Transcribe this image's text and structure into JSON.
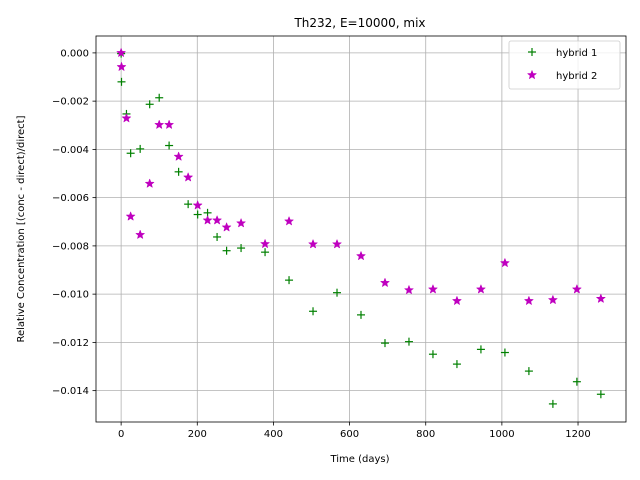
{
  "chart_data": {
    "type": "scatter",
    "title": "Th232, E=10000, mix",
    "xlabel": "Time (days)",
    "ylabel": "Relative Concentration [(conc - direct)/direct]",
    "xlim": [
      -66,
      1326
    ],
    "ylim": [
      -0.0153,
      0.0007
    ],
    "xticks": [
      0,
      200,
      400,
      600,
      800,
      1000,
      1200
    ],
    "xtick_labels": [
      "0",
      "200",
      "400",
      "600",
      "800",
      "1000",
      "1200"
    ],
    "yticks": [
      0.0,
      -0.002,
      -0.004,
      -0.006,
      -0.008,
      -0.01,
      -0.012,
      -0.014
    ],
    "ytick_labels": [
      "0.000",
      "−0.002",
      "−0.004",
      "−0.006",
      "−0.008",
      "−0.010",
      "−0.012",
      "−0.014"
    ],
    "grid": true,
    "legend_position": "top-right",
    "series": [
      {
        "name": "hybrid 1",
        "marker": "plus",
        "color": "#008000",
        "x": [
          0,
          1,
          14,
          25,
          50,
          75,
          100,
          126,
          151,
          176,
          201,
          227,
          252,
          277,
          315,
          378,
          441,
          504,
          567,
          630,
          693,
          756,
          819,
          882,
          945,
          1008,
          1071,
          1134,
          1197,
          1260
        ],
        "y": [
          -3e-05,
          -0.0012,
          -0.00253,
          -0.00416,
          -0.00398,
          -0.00213,
          -0.00186,
          -0.00384,
          -0.00493,
          -0.00627,
          -0.0067,
          -0.00663,
          -0.00763,
          -0.0082,
          -0.00809,
          -0.00826,
          -0.00942,
          -0.01071,
          -0.00994,
          -0.01086,
          -0.01203,
          -0.01197,
          -0.01249,
          -0.0129,
          -0.01229,
          -0.01242,
          -0.01319,
          -0.01455,
          -0.01363,
          -0.01415
        ]
      },
      {
        "name": "hybrid 2",
        "marker": "star",
        "color": "#bf00bf",
        "x": [
          0,
          1,
          14,
          25,
          50,
          75,
          100,
          126,
          151,
          176,
          201,
          227,
          252,
          277,
          315,
          378,
          441,
          504,
          567,
          630,
          693,
          756,
          819,
          882,
          945,
          1008,
          1071,
          1134,
          1197,
          1260
        ],
        "y": [
          0.0,
          -0.00058,
          -0.00271,
          -0.00678,
          -0.00754,
          -0.00542,
          -0.00298,
          -0.00298,
          -0.0043,
          -0.00516,
          -0.00632,
          -0.00694,
          -0.00694,
          -0.00723,
          -0.00706,
          -0.00792,
          -0.00698,
          -0.00793,
          -0.00793,
          -0.00842,
          -0.00953,
          -0.00983,
          -0.0098,
          -0.01028,
          -0.0098,
          -0.00871,
          -0.01028,
          -0.01024,
          -0.0098,
          -0.01019
        ]
      }
    ]
  }
}
